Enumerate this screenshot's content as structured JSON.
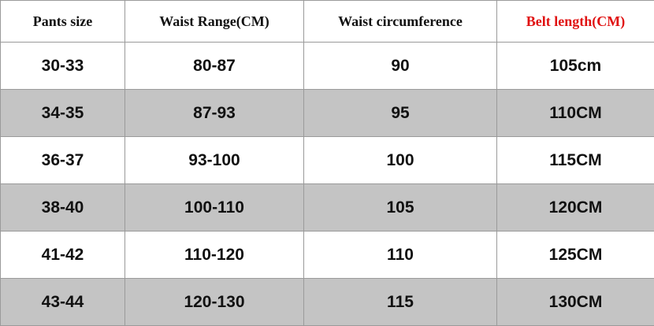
{
  "table": {
    "header": [
      "Pants size",
      "Waist Range(CM)",
      "Waist circumference",
      "Belt length(CM)"
    ],
    "rows": [
      [
        "30-33",
        "80-87",
        "90",
        "105cm"
      ],
      [
        "34-35",
        "87-93",
        "95",
        "110CM"
      ],
      [
        "36-37",
        "93-100",
        "100",
        "115CM"
      ],
      [
        "38-40",
        "100-110",
        "105",
        "120CM"
      ],
      [
        "41-42",
        "110-120",
        "110",
        "125CM"
      ],
      [
        "43-44",
        "120-130",
        "115",
        "130CM"
      ]
    ]
  }
}
